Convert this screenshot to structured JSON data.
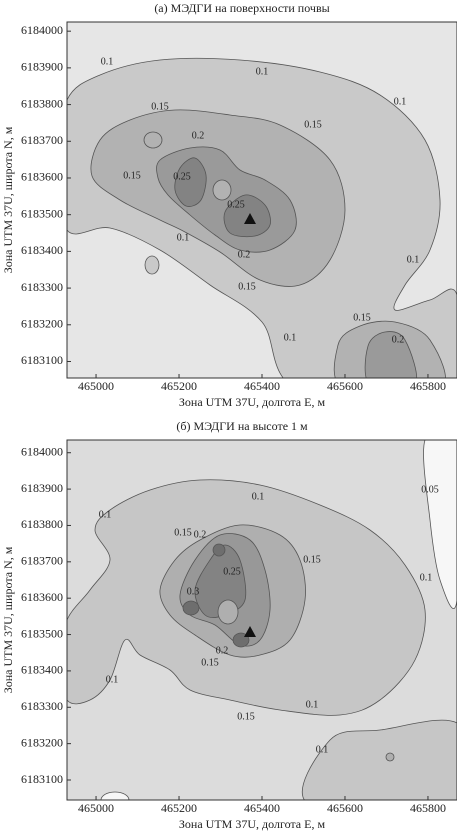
{
  "chart_data": [
    {
      "type": "contour",
      "title": "(а) МЭДГИ на поверхности почвы",
      "x_label": "Зона UTM 37U, долгота E, м",
      "y_label": "Зона UTM 37U, широта N, м",
      "xlim": [
        464930,
        465870
      ],
      "ylim": [
        6183055,
        6184025
      ],
      "xticks": [
        465000,
        465200,
        465400,
        465600,
        465800
      ],
      "yticks": [
        6183100,
        6183200,
        6183300,
        6183400,
        6183500,
        6183600,
        6183700,
        6183800,
        6183900,
        6184000
      ],
      "levels": [
        0.1,
        0.15,
        0.2,
        0.25
      ],
      "below_color": "#e6e6e6",
      "colors": [
        "#c9c9c9",
        "#b2b2b2",
        "#9a9a9a",
        "#838383"
      ]
    },
    {
      "type": "contour",
      "title": "(б) МЭДГИ на высоте 1 м",
      "x_label": "Зона UTM 37U, долгота E, м",
      "y_label": "Зона UTM 37U, широта N, м",
      "xlim": [
        464930,
        465870
      ],
      "ylim": [
        6183045,
        6184035
      ],
      "xticks": [
        465000,
        465200,
        465400,
        465600,
        465800
      ],
      "yticks": [
        6183100,
        6183200,
        6183300,
        6183400,
        6183500,
        6183600,
        6183700,
        6183800,
        6183900,
        6184000
      ],
      "levels": [
        0.05,
        0.1,
        0.15,
        0.2,
        0.25,
        0.3
      ],
      "below_color": "#f7f7f7",
      "colors": [
        "#dcdcdc",
        "#c6c6c6",
        "#afafaf",
        "#989898",
        "#838383",
        "#6e6e6e"
      ]
    }
  ]
}
